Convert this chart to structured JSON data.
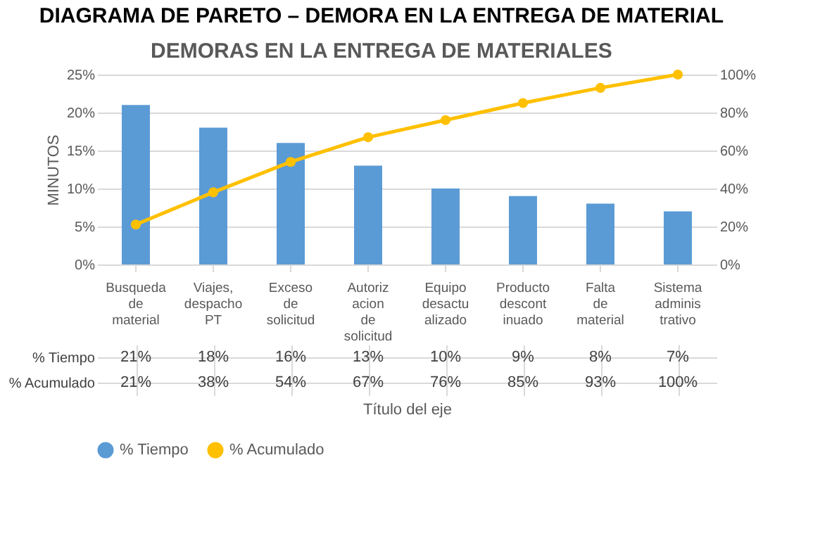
{
  "chart_data": {
    "type": "bar",
    "title": "DIAGRAMA DE PARETO – DEMORA EN LA ENTREGA DE MATERIAL",
    "subtitle": "DEMORAS EN LA ENTREGA DE MATERIALES",
    "xlabel": "Título del eje",
    "ylabel": "MINUTOS",
    "categories": [
      "Busqueda de material",
      "Viajes, despacho PT",
      "Exceso de solicitud",
      "Autorizacion de solicitud",
      "Equipo desactualizado",
      "Producto descontinuado",
      "Falta de material",
      "Sistema administrativo"
    ],
    "series": [
      {
        "name": "% Tiempo",
        "color": "#5b9bd5",
        "values": [
          21,
          18,
          16,
          13,
          10,
          9,
          8,
          7
        ],
        "value_labels": [
          "21%",
          "18%",
          "16%",
          "13%",
          "10%",
          "9%",
          "8%",
          "7%"
        ]
      },
      {
        "name": "% Acumulado",
        "type": "line",
        "axis": "y2",
        "color": "#ffc000",
        "values": [
          21,
          38,
          54,
          67,
          76,
          85,
          93,
          100
        ],
        "value_labels": [
          "21%",
          "38%",
          "54%",
          "67%",
          "76%",
          "85%",
          "93%",
          "100%"
        ]
      }
    ],
    "ylim": [
      0,
      25
    ],
    "yticks": [
      {
        "value": 0,
        "label": "0%"
      },
      {
        "value": 5,
        "label": "5%"
      },
      {
        "value": 10,
        "label": "10%"
      },
      {
        "value": 15,
        "label": "15%"
      },
      {
        "value": 20,
        "label": "20%"
      },
      {
        "value": 25,
        "label": "25%"
      }
    ],
    "y2lim": [
      0,
      100
    ],
    "y2ticks": [
      {
        "value": 0,
        "label": "0%"
      },
      {
        "value": 20,
        "label": "20%"
      },
      {
        "value": 40,
        "label": "40%"
      },
      {
        "value": 60,
        "label": "60%"
      },
      {
        "value": 80,
        "label": "80%"
      },
      {
        "value": 100,
        "label": "100%"
      }
    ],
    "grid": "y",
    "legend": "bottom",
    "marker": "circle",
    "line_style": "solid"
  }
}
